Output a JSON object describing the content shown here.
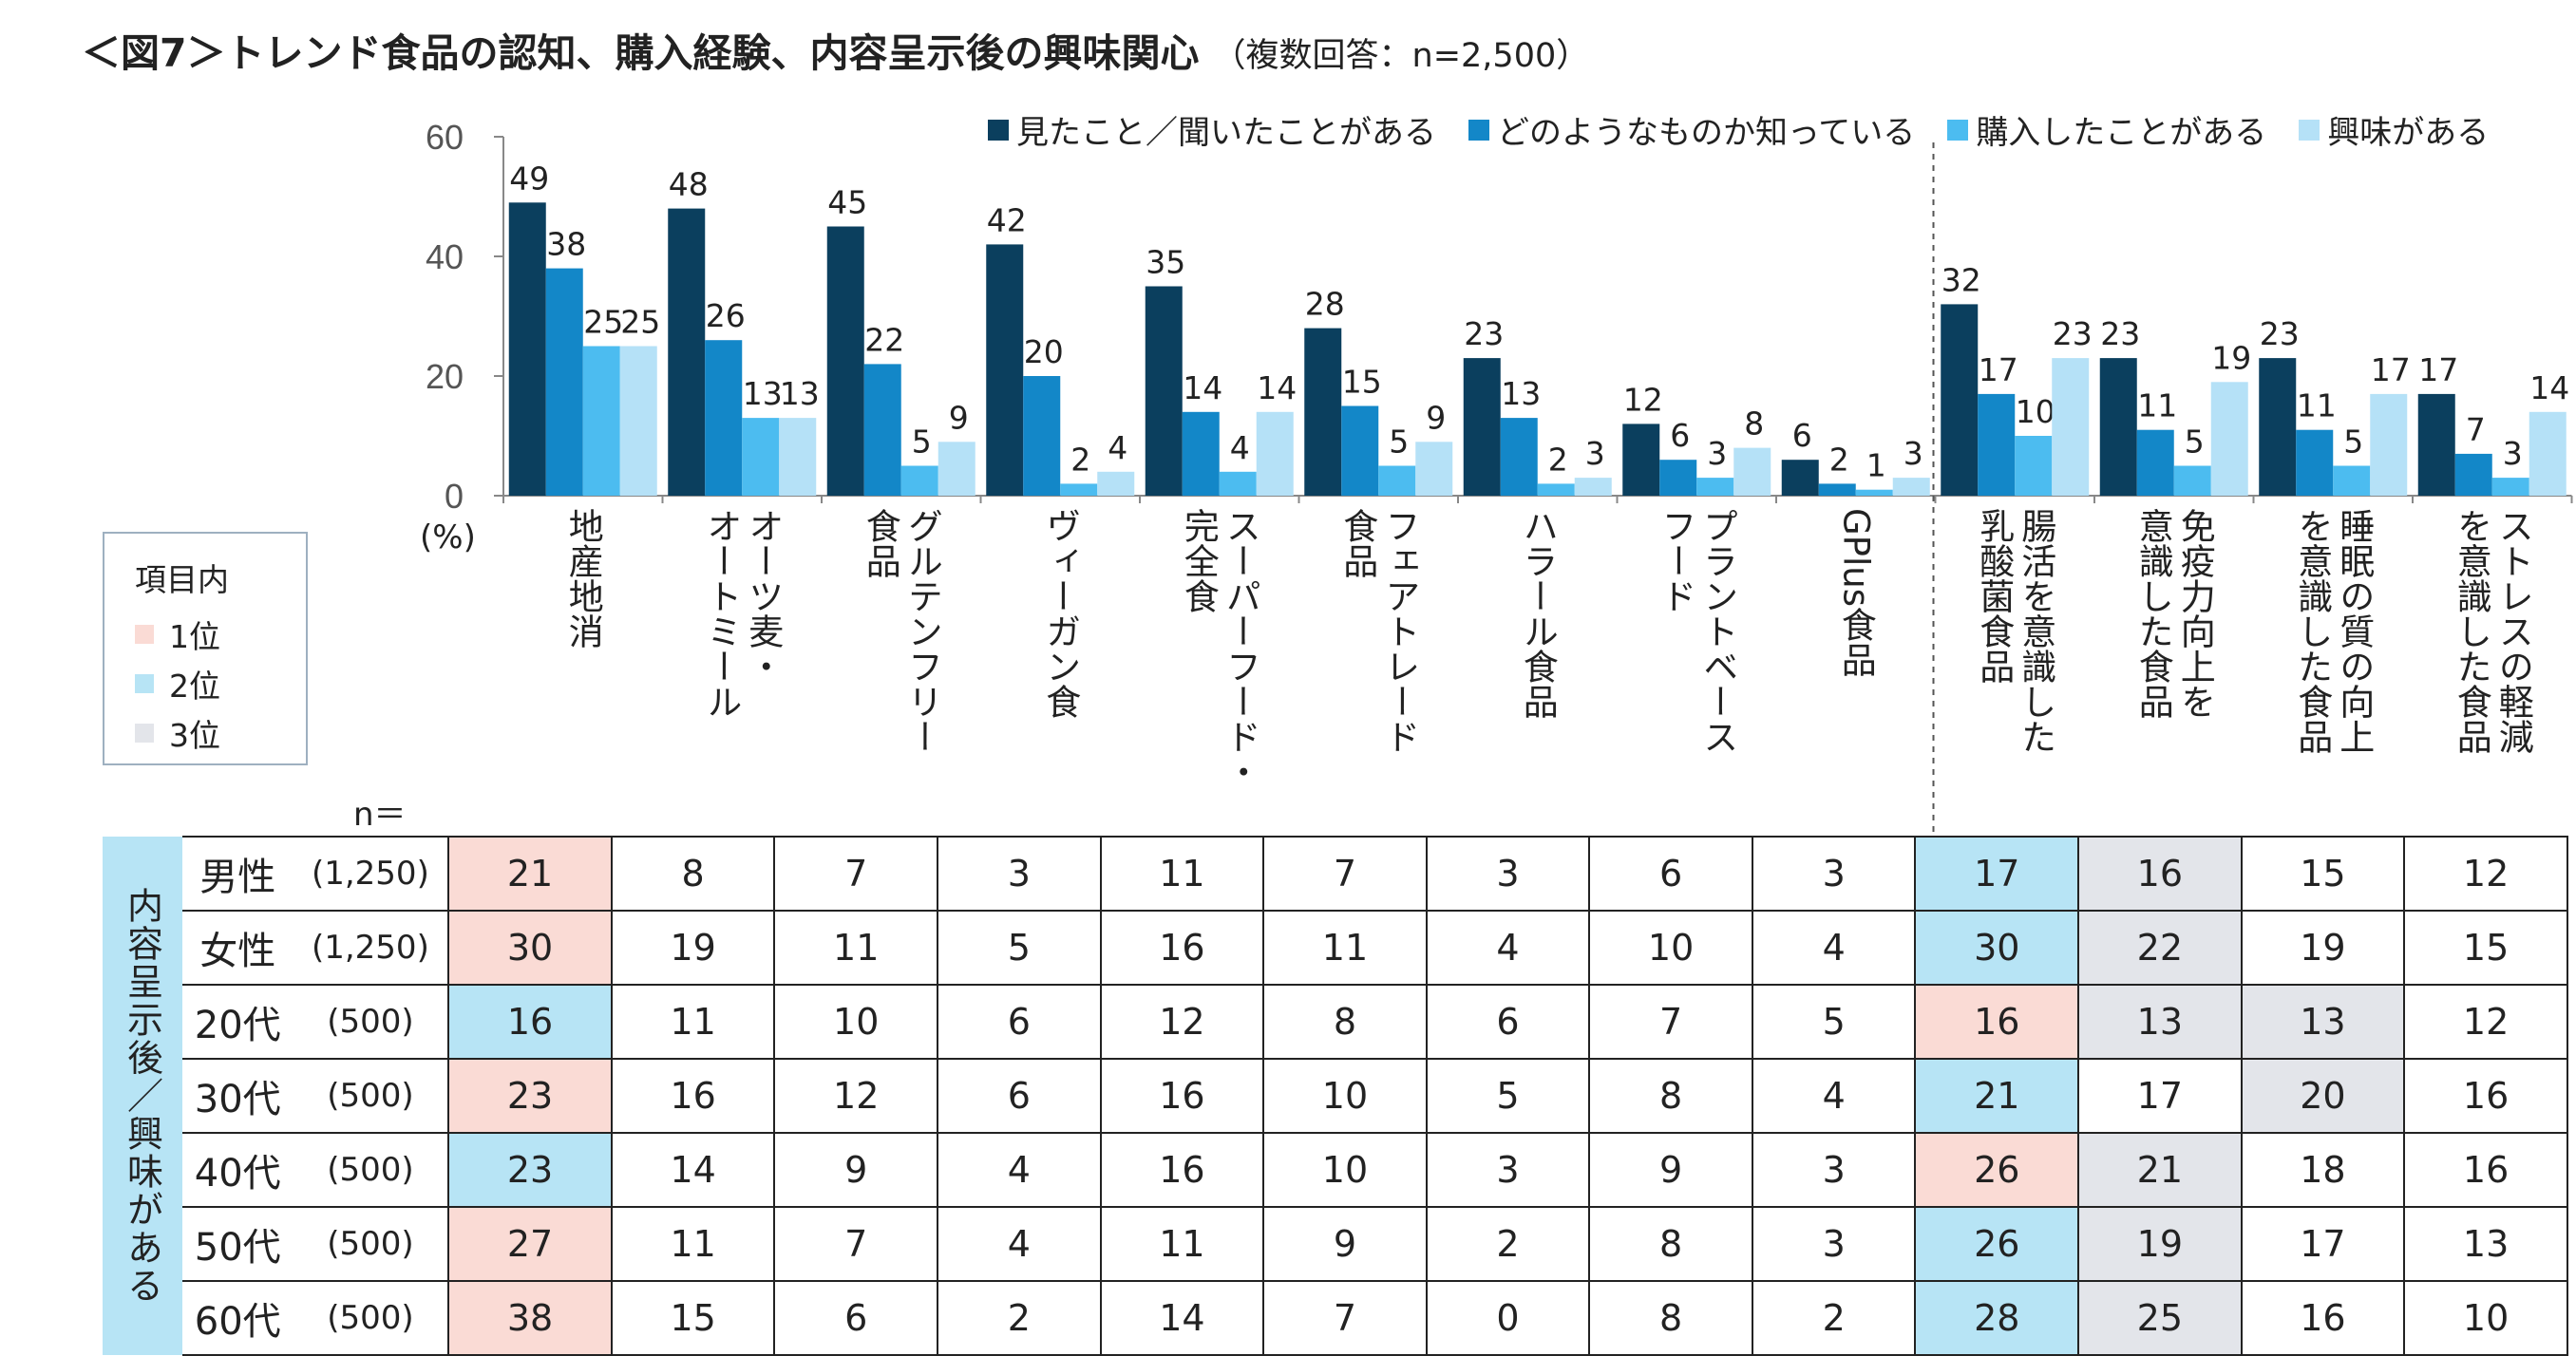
{
  "title": "＜図7＞トレンド食品の認知、購入経験、内容呈示後の興味関心",
  "subtitle": "（複数回答：n=2,500）",
  "colors": {
    "seen": "#0b3f5e",
    "know": "#1387c8",
    "bought": "#4cbcf0",
    "interest": "#b5e1f7",
    "rank1": "#fadbd5",
    "rank2": "#b7e4f5",
    "rank3": "#e3e5ea"
  },
  "chart_data": {
    "type": "bar",
    "ylim": [
      0,
      60
    ],
    "yticks": [
      0,
      20,
      40,
      60
    ],
    "ylabel": "(%)",
    "categories": [
      "地産地消",
      "オーツ麦・オートミール",
      "グルテンフリー食品",
      "ヴィーガン食",
      "スーパーフード・完全食",
      "フェアトレード食品",
      "ハラール食品",
      "プラントベースフード",
      "GPlus食品",
      "腸活を意識した乳酸菌食品",
      "免疫力向上を意識した食品",
      "睡眠の質の向上を意識した食品",
      "ストレスの軽減を意識した食品"
    ],
    "category_labels": [
      [
        "地産地消"
      ],
      [
        "オーツ麦・",
        "オートミール"
      ],
      [
        "グルテンフリー",
        "食品"
      ],
      [
        "ヴィーガン食"
      ],
      [
        "スーパーフード・",
        "完全食"
      ],
      [
        "フェアトレード",
        "食品"
      ],
      [
        "ハラール食品"
      ],
      [
        "プラントベース",
        "フード"
      ],
      [
        "GPlus食品"
      ],
      [
        "腸活を意識した",
        "乳酸菌食品"
      ],
      [
        "免疫力向上を",
        "意識した食品"
      ],
      [
        "睡眠の質の向上",
        "を意識した食品"
      ],
      [
        "ストレスの軽減",
        "を意識した食品"
      ]
    ],
    "series": [
      {
        "name": "見たこと／聞いたことがある",
        "values": [
          49,
          48,
          45,
          42,
          35,
          28,
          23,
          12,
          6,
          32,
          23,
          23,
          17
        ]
      },
      {
        "name": "どのようなものか知っている",
        "values": [
          38,
          26,
          22,
          20,
          14,
          15,
          13,
          6,
          2,
          17,
          11,
          11,
          7
        ]
      },
      {
        "name": "購入したことがある",
        "values": [
          25,
          13,
          5,
          2,
          4,
          5,
          2,
          3,
          1,
          10,
          5,
          5,
          3
        ]
      },
      {
        "name": "興味がある",
        "values": [
          25,
          13,
          9,
          4,
          14,
          9,
          3,
          8,
          3,
          23,
          19,
          17,
          14
        ]
      }
    ],
    "grid": false,
    "legend": "top-right"
  },
  "legend_items": [
    {
      "label": "見たこと／聞いたことがある",
      "color": "#0b3f5e"
    },
    {
      "label": "どのようなものか知っている",
      "color": "#1387c8"
    },
    {
      "label": "購入したことがある",
      "color": "#4cbcf0"
    },
    {
      "label": "興味がある",
      "color": "#b5e1f7"
    }
  ],
  "rank_legend": {
    "title": "項目内",
    "items": [
      {
        "label": "1位",
        "color": "#fadbd5"
      },
      {
        "label": "2位",
        "color": "#b7e4f5"
      },
      {
        "label": "3位",
        "color": "#e3e5ea"
      }
    ]
  },
  "table": {
    "n_label": "n＝",
    "side_label": "内容呈示後／興味がある",
    "rows": [
      {
        "label": "男性",
        "n": "(1,250)",
        "values": [
          "21",
          "8",
          "7",
          "3",
          "11",
          "7",
          "3",
          "6",
          "3",
          "17",
          "16",
          "15",
          "12"
        ],
        "ranks": [
          1,
          0,
          0,
          0,
          0,
          0,
          0,
          0,
          0,
          2,
          3,
          0,
          0
        ]
      },
      {
        "label": "女性",
        "n": "(1,250)",
        "values": [
          "30",
          "19",
          "11",
          "5",
          "16",
          "11",
          "4",
          "10",
          "4",
          "30",
          "22",
          "19",
          "15"
        ],
        "ranks": [
          1,
          0,
          0,
          0,
          0,
          0,
          0,
          0,
          0,
          2,
          3,
          0,
          0
        ]
      },
      {
        "label": "20代",
        "n": "(500)",
        "values": [
          "16",
          "11",
          "10",
          "6",
          "12",
          "8",
          "6",
          "7",
          "5",
          "16",
          "13",
          "13",
          "12"
        ],
        "ranks": [
          2,
          0,
          0,
          0,
          0,
          0,
          0,
          0,
          0,
          1,
          3,
          3,
          0
        ]
      },
      {
        "label": "30代",
        "n": "(500)",
        "values": [
          "23",
          "16",
          "12",
          "6",
          "16",
          "10",
          "5",
          "8",
          "4",
          "21",
          "17",
          "20",
          "16"
        ],
        "ranks": [
          1,
          0,
          0,
          0,
          0,
          0,
          0,
          0,
          0,
          2,
          0,
          3,
          0
        ]
      },
      {
        "label": "40代",
        "n": "(500)",
        "values": [
          "23",
          "14",
          "9",
          "4",
          "16",
          "10",
          "3",
          "9",
          "3",
          "26",
          "21",
          "18",
          "16"
        ],
        "ranks": [
          2,
          0,
          0,
          0,
          0,
          0,
          0,
          0,
          0,
          1,
          3,
          0,
          0
        ]
      },
      {
        "label": "50代",
        "n": "(500)",
        "values": [
          "27",
          "11",
          "7",
          "4",
          "11",
          "9",
          "2",
          "8",
          "3",
          "26",
          "19",
          "17",
          "13"
        ],
        "ranks": [
          1,
          0,
          0,
          0,
          0,
          0,
          0,
          0,
          0,
          2,
          3,
          0,
          0
        ]
      },
      {
        "label": "60代",
        "n": "(500)",
        "values": [
          "38",
          "15",
          "6",
          "2",
          "14",
          "7",
          "0",
          "8",
          "2",
          "28",
          "25",
          "16",
          "10"
        ],
        "ranks": [
          1,
          0,
          0,
          0,
          0,
          0,
          0,
          0,
          0,
          2,
          3,
          0,
          0
        ]
      }
    ]
  }
}
